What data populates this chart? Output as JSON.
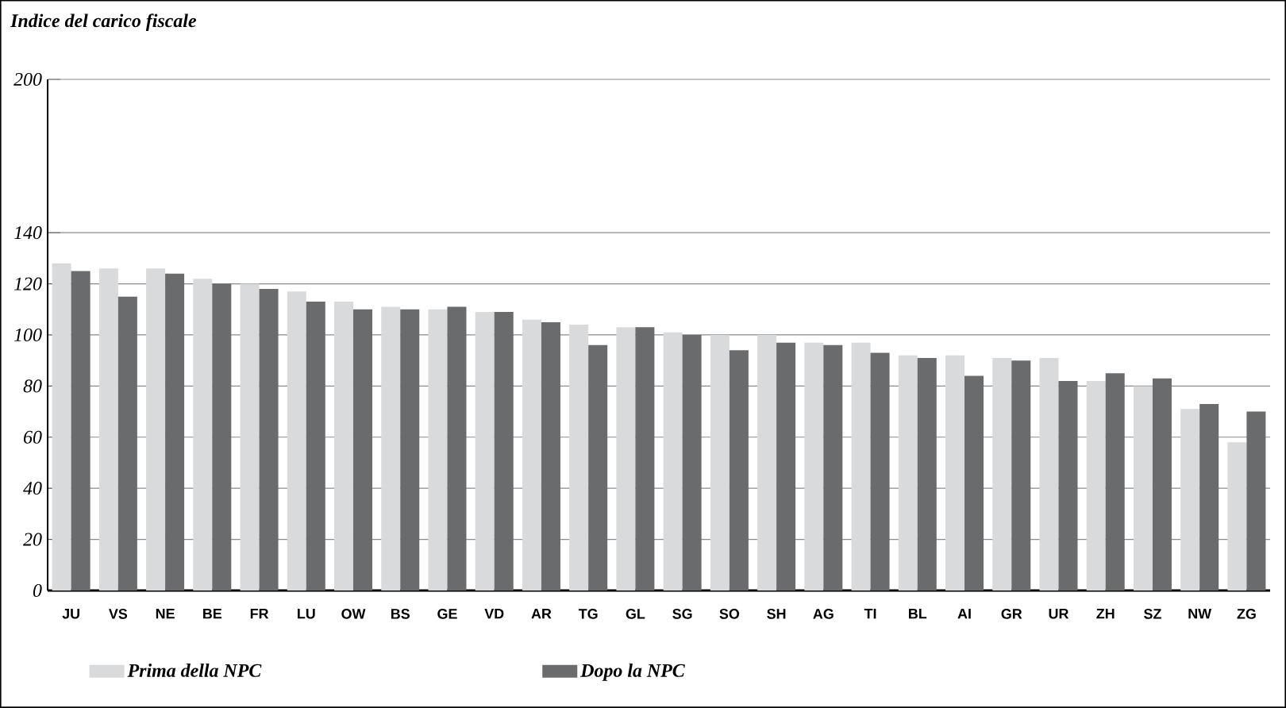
{
  "chart_data": {
    "type": "bar",
    "title": "Indice del carico fiscale",
    "categories": [
      "JU",
      "VS",
      "NE",
      "BE",
      "FR",
      "LU",
      "OW",
      "BS",
      "GE",
      "VD",
      "AR",
      "TG",
      "GL",
      "SG",
      "SO",
      "SH",
      "AG",
      "TI",
      "BL",
      "AI",
      "GR",
      "UR",
      "ZH",
      "SZ",
      "NW",
      "ZG"
    ],
    "series": [
      {
        "name": "Prima della NPC",
        "color": "#d9dadc",
        "values": [
          128,
          126,
          126,
          122,
          120,
          117,
          113,
          111,
          110,
          109,
          106,
          104,
          103,
          101,
          100,
          100,
          97,
          97,
          92,
          92,
          91,
          91,
          82,
          80,
          71,
          58
        ]
      },
      {
        "name": "Dopo la NPC",
        "color": "#6a6b6d",
        "values": [
          125,
          115,
          124,
          120,
          118,
          113,
          110,
          110,
          111,
          109,
          105,
          96,
          103,
          100,
          94,
          97,
          96,
          93,
          91,
          84,
          90,
          82,
          85,
          83,
          73,
          70
        ]
      }
    ],
    "ylim": [
      0,
      200
    ],
    "yticks": [
      0,
      20,
      40,
      60,
      80,
      100,
      120,
      140,
      200
    ],
    "grid": "y",
    "legend": "bottom"
  }
}
